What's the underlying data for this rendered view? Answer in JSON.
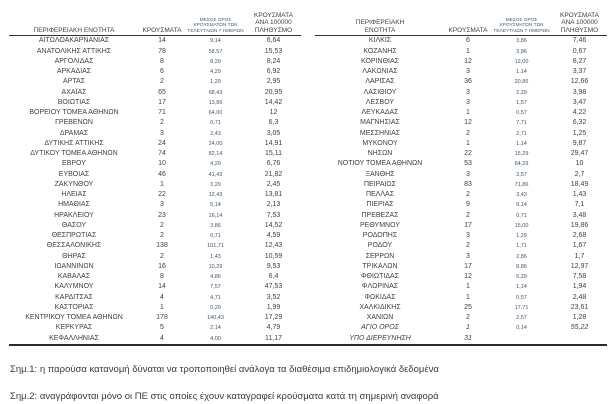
{
  "table": {
    "headers": {
      "region": "ΠΕΡΙΦΕΡΕΙΑΚΗ ΕΝΟΤΗΤΑ",
      "cases": "ΚΡΟΥΣΜΑΤΑ",
      "avg7": "ΜΕΣΟΣ ΟΡΟΣ ΚΡΟΥΣΜΑΤΩΝ ΤΩΝ ΤΕΛΕΥΤΑΙΩΝ 7 ΗΜΕΡΩΝ",
      "per100k": "ΚΡΟΥΣΜΑΤΑ ΑΝΑ 100000 ΠΛΗΘΥΣΜΟ"
    },
    "rows": [
      {
        "left": [
          "ΑΙΤΩΛΟΑΚΑΡΝΑΝΙΑΣ",
          "14",
          "9,14",
          "6,64"
        ],
        "right": [
          "ΚΙΛΚΙΣ",
          "6",
          "3,86",
          "7,46"
        ]
      },
      {
        "left": [
          "ΑΝΑΤΟΛΙΚΗΣ ΑΤΤΙΚΗΣ",
          "78",
          "58,57",
          "15,53"
        ],
        "right": [
          "ΚΟΖΑΝΗΣ",
          "1",
          "3,86",
          "0,67"
        ]
      },
      {
        "left": [
          "ΑΡΓΟΛΙΔΑΣ",
          "8",
          "8,29",
          "8,24"
        ],
        "right": [
          "ΚΟΡΙΝΘΙΑΣ",
          "12",
          "12,00",
          "8,27"
        ]
      },
      {
        "left": [
          "ΑΡΚΑΔΙΑΣ",
          "6",
          "4,29",
          "6,92"
        ],
        "right": [
          "ΛΑΚΩΝΙΑΣ",
          "3",
          "1,14",
          "3,37"
        ]
      },
      {
        "left": [
          "ΑΡΤΑΣ",
          "2",
          "1,29",
          "2,95"
        ],
        "right": [
          "ΛΑΡΙΣΑΣ",
          "36",
          "20,86",
          "12,66"
        ]
      },
      {
        "left": [
          "ΑΧΑΪΑΣ",
          "65",
          "68,43",
          "20,95"
        ],
        "right": [
          "ΛΑΣΙΘΙΟΥ",
          "3",
          "2,29",
          "3,98"
        ]
      },
      {
        "left": [
          "ΒΟΙΩΤΙΑΣ",
          "17",
          "13,86",
          "14,42"
        ],
        "right": [
          "ΛΕΣΒΟΥ",
          "3",
          "1,57",
          "3,47"
        ]
      },
      {
        "left": [
          "ΒΟΡΕΙΟΥ ΤΟΜΕΑ ΑΘΗΝΩΝ",
          "71",
          "64,00",
          "12"
        ],
        "right": [
          "ΛΕΥΚΑΔΑΣ",
          "1",
          "0,57",
          "4,22"
        ]
      },
      {
        "left": [
          "ΓΡΕΒΕΝΩΝ",
          "2",
          "0,71",
          "6,3"
        ],
        "right": [
          "ΜΑΓΝΗΣΙΑΣ",
          "12",
          "7,71",
          "6,32"
        ]
      },
      {
        "left": [
          "ΔΡΑΜΑΣ",
          "3",
          "2,43",
          "3,05"
        ],
        "right": [
          "ΜΕΣΣΗΝΙΑΣ",
          "2",
          "2,71",
          "1,25"
        ]
      },
      {
        "left": [
          "ΔΥΤΙΚΗΣ ΑΤΤΙΚΗΣ",
          "24",
          "24,00",
          "14,91"
        ],
        "right": [
          "ΜΥΚΟΝΟΥ",
          "1",
          "1,14",
          "9,87"
        ]
      },
      {
        "left": [
          "ΔΥΤΙΚΟΥ ΤΟΜΕΑ ΑΘΗΝΩΝ",
          "74",
          "82,14",
          "15,11"
        ],
        "right": [
          "ΝΗΣΩΝ",
          "22",
          "15,29",
          "29,47"
        ]
      },
      {
        "left": [
          "ΕΒΡΟΥ",
          "10",
          "4,29",
          "6,76"
        ],
        "right": [
          "ΝΟΤΙΟΥ ΤΟΜΕΑ ΑΘΗΝΩΝ",
          "53",
          "64,29",
          "10"
        ]
      },
      {
        "left": [
          "ΕΥΒΟΙΑΣ",
          "46",
          "41,43",
          "21,82"
        ],
        "right": [
          "ΞΑΝΘΗΣ",
          "3",
          "3,57",
          "2,7"
        ]
      },
      {
        "left": [
          "ΖΑΚΥΝΘΟΥ",
          "1",
          "3,29",
          "2,45"
        ],
        "right": [
          "ΠΕΙΡΑΙΩΣ",
          "83",
          "71,86",
          "18,49"
        ]
      },
      {
        "left": [
          "ΗΛΕΙΑΣ",
          "22",
          "12,43",
          "13,81"
        ],
        "right": [
          "ΠΕΛΛΑΣ",
          "2",
          "3,43",
          "1,43"
        ]
      },
      {
        "left": [
          "ΗΜΑΘΙΑΣ",
          "3",
          "5,14",
          "2,13"
        ],
        "right": [
          "ΠΙΕΡΙΑΣ",
          "9",
          "9,14",
          "7,1"
        ]
      },
      {
        "left": [
          "ΗΡΑΚΛΕΙΟΥ",
          "23",
          "16,14",
          "7,53"
        ],
        "right": [
          "ΠΡΕΒΕΖΑΣ",
          "2",
          "0,71",
          "3,48"
        ]
      },
      {
        "left": [
          "ΘΑΣΟΥ",
          "2",
          "3,86",
          "14,52"
        ],
        "right": [
          "ΡΕΘΥΜΝΟΥ",
          "17",
          "15,00",
          "19,86"
        ]
      },
      {
        "left": [
          "ΘΕΣΠΡΩΤΙΑΣ",
          "2",
          "0,71",
          "4,59"
        ],
        "right": [
          "ΡΟΔΟΠΗΣ",
          "3",
          "1,29",
          "2,68"
        ]
      },
      {
        "left": [
          "ΘΕΣΣΑΛΟΝΙΚΗΣ",
          "138",
          "101,71",
          "12,43"
        ],
        "right": [
          "ΡΟΔΟΥ",
          "2",
          "1,71",
          "1,67"
        ]
      },
      {
        "left": [
          "ΘΗΡΑΣ",
          "2",
          "1,43",
          "10,59"
        ],
        "right": [
          "ΣΕΡΡΩΝ",
          "3",
          "2,86",
          "1,7"
        ]
      },
      {
        "left": [
          "ΙΩΑΝΝΙΝΩΝ",
          "16",
          "10,29",
          "9,53"
        ],
        "right": [
          "ΤΡΙΚΑΛΩΝ",
          "17",
          "8,86",
          "12,97"
        ]
      },
      {
        "left": [
          "ΚΑΒΑΛΑΣ",
          "8",
          "4,86",
          "6,4"
        ],
        "right": [
          "ΦΘΙΩΤΙΔΑΣ",
          "12",
          "5,29",
          "7,58"
        ]
      },
      {
        "left": [
          "ΚΑΛΥΜΝΟΥ",
          "14",
          "7,57",
          "47,53"
        ],
        "right": [
          "ΦΛΩΡΙΝΑΣ",
          "1",
          "1,14",
          "1,94"
        ]
      },
      {
        "left": [
          "ΚΑΡΔΙΤΣΑΣ",
          "4",
          "4,71",
          "3,52"
        ],
        "right": [
          "ΦΩΚΙΔΑΣ",
          "1",
          "0,57",
          "2,48"
        ]
      },
      {
        "left": [
          "ΚΑΣΤΟΡΙΑΣ",
          "1",
          "0,29",
          "1,99"
        ],
        "right": [
          "ΧΑΛΚΙΔΙΚΗΣ",
          "25",
          "17,71",
          "23,61"
        ]
      },
      {
        "left": [
          "ΚΕΝΤΡΙΚΟΥ ΤΟΜΕΑ ΑΘΗΝΩΝ",
          "178",
          "140,43",
          "17,29"
        ],
        "right": [
          "ΧΑΝΙΩΝ",
          "2",
          "2,57",
          "1,28"
        ]
      },
      {
        "left": [
          "ΚΕΡΚΥΡΑΣ",
          "5",
          "2,14",
          "4,79"
        ],
        "right": [
          "ΑΓΙΟ ΟΡΟΣ",
          "1",
          "0,14",
          "55,22"
        ]
      },
      {
        "left": [
          "ΚΕΦΑΛΛΗΝΙΑΣ",
          "4",
          "4,00",
          "11,17"
        ],
        "right": [
          "ΥΠΟ ΔΙΕΡΕΥΝΗΣΗ",
          "31",
          "",
          ""
        ]
      }
    ],
    "italic_right_regions": [
      "ΑΓΙΟ ΟΡΟΣ",
      "ΥΠΟ ΔΙΕΡΕΥΝΗΣΗ"
    ]
  },
  "notes": [
    "Σημ.1: η παρούσα κατανομή δύναται να τροποποιηθεί ανάλογα τα διαθέσιμα επιδημιολογικά δεδομένα",
    "Σημ.2: αναγράφονται μόνο οι ΠΕ στις οποίες έχουν καταγραφεί κρούσματα κατά τη σημερινή αναφορά"
  ],
  "colors": {
    "text": "#3f3f3f",
    "avg_column_text": "#44546a",
    "header_rule": "#333333",
    "bottom_rule": "#2b2b2b",
    "background": "#ffffff"
  }
}
